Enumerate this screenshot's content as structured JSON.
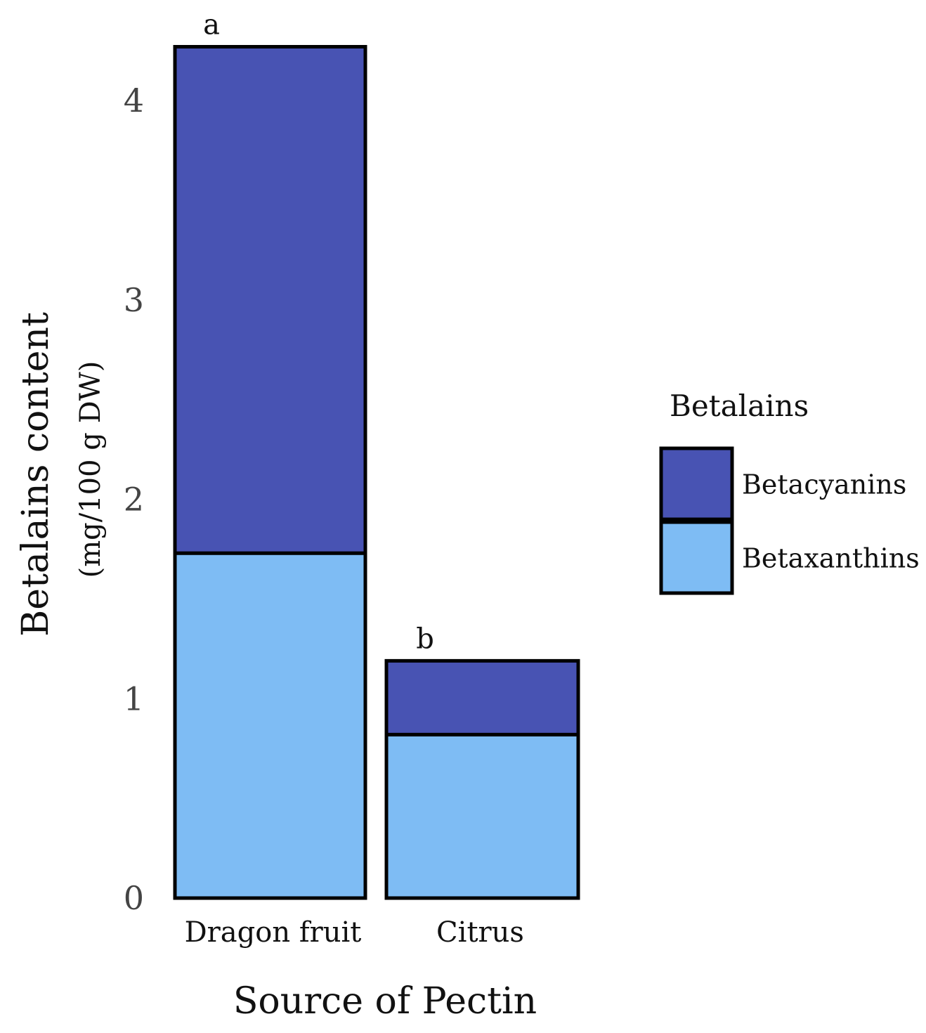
{
  "chart_data": {
    "type": "bar",
    "stacked": true,
    "categories": [
      "Dragon fruit",
      "Citrus"
    ],
    "series": [
      {
        "name": "Betaxanthins",
        "values": [
          1.73,
          0.82
        ],
        "color": "#7EBCF4"
      },
      {
        "name": "Betacyanins",
        "values": [
          2.54,
          0.37
        ],
        "color": "#4853B3"
      }
    ],
    "significance_labels": [
      "a",
      "b"
    ],
    "xlabel": "Source of Pectin",
    "ylabel": "Betalains content",
    "ylabel_unit": "(mg/100 g DW)",
    "ylim": [
      0,
      4.3
    ],
    "yticks": [
      0,
      1,
      2,
      3,
      4
    ],
    "grid": false,
    "legend": {
      "title": "Betalains",
      "position": "right",
      "entries": [
        "Betacyanins",
        "Betaxanthins"
      ]
    }
  }
}
